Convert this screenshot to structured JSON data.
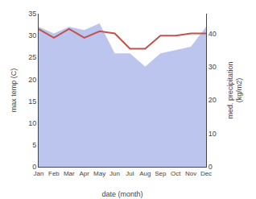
{
  "chart_data": {
    "type": "line",
    "xlabel": "date (month)",
    "ylabel": "max temp (C)",
    "y2label": "med. precipitation\n(kg/m2)",
    "categories": [
      "Jan",
      "Feb",
      "Mar",
      "Apr",
      "May",
      "Jun",
      "Jul",
      "Aug",
      "Sep",
      "Oct",
      "Nov",
      "Dec"
    ],
    "series": [
      {
        "type": "area",
        "axis": "y2",
        "color": "#bcc5ee",
        "values": [
          42.0,
          40.0,
          42.0,
          41.0,
          43.0,
          34.0,
          34.0,
          30.0,
          34.0,
          35.0,
          36.0,
          42.0
        ]
      },
      {
        "type": "line",
        "color": "#c0534d",
        "values": [
          31.5,
          29.5,
          31.5,
          29.5,
          31.0,
          30.5,
          27.0,
          27.0,
          30.0,
          30.0,
          30.5,
          30.5
        ]
      }
    ],
    "ylim": [
      0,
      35
    ],
    "yticks": [
      0,
      5,
      10,
      15,
      20,
      25,
      30,
      35
    ],
    "y2lim": [
      0,
      45.9
    ],
    "y2ticks": [
      0,
      10,
      20,
      30,
      40
    ],
    "grid": false
  }
}
